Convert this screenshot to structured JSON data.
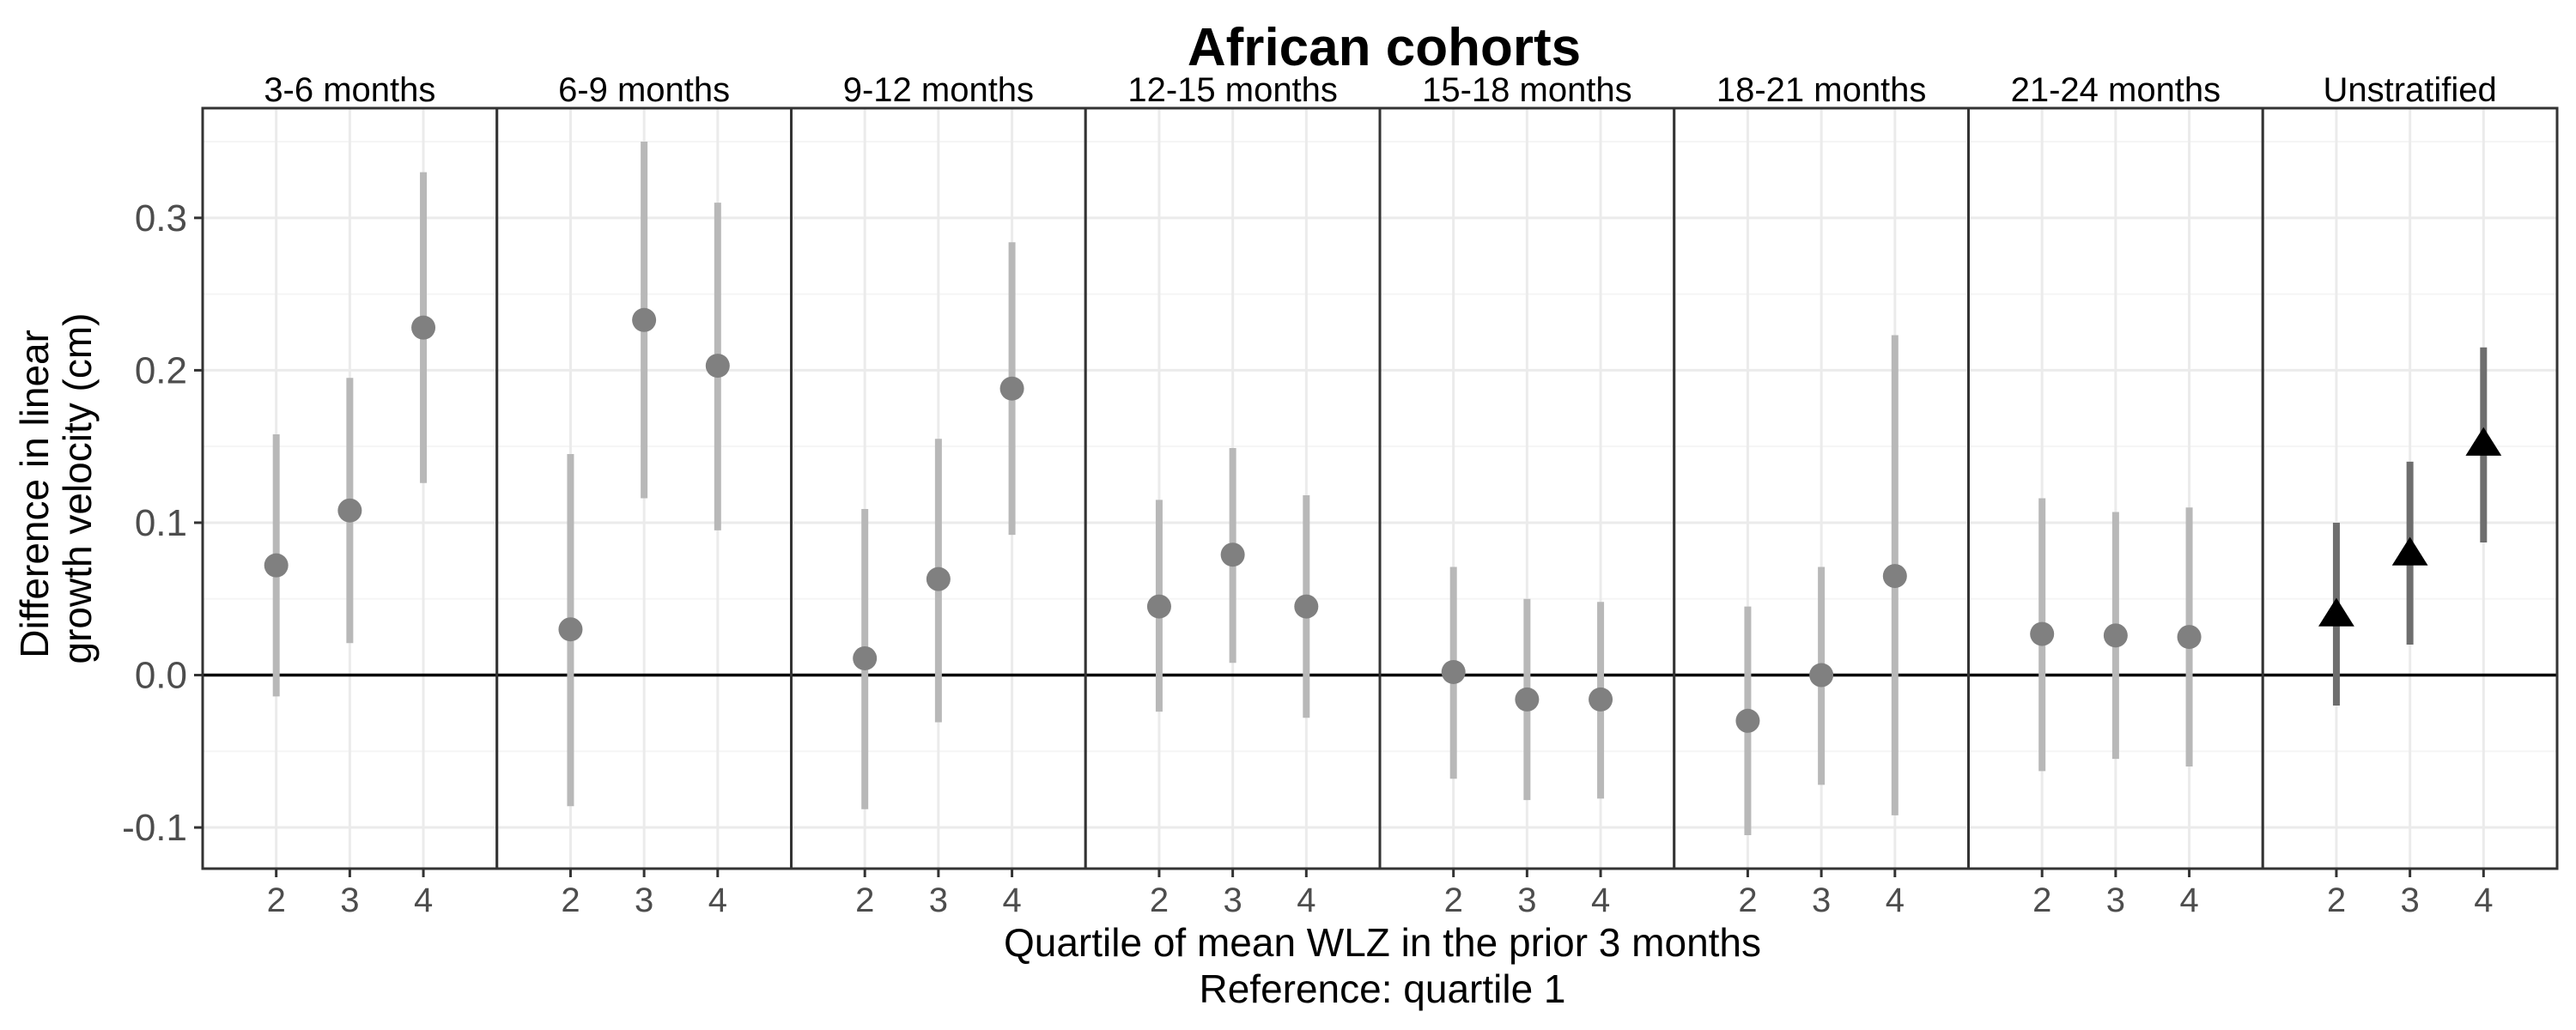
{
  "chart_data": {
    "type": "scatter",
    "title": "African cohorts",
    "xlabel": "Quartile of mean WLZ in the prior 3 months",
    "xlabel_sub": "Reference: quartile 1",
    "ylabel_lines": [
      "Difference in linear",
      "growth velocity (cm)"
    ],
    "categories": [
      "2",
      "3",
      "4"
    ],
    "ylim": [
      -0.127,
      0.372
    ],
    "yticks": [
      -0.1,
      0.0,
      0.1,
      0.2,
      0.3
    ],
    "ytick_labels": [
      "-0.1",
      "0.0",
      "0.1",
      "0.2",
      "0.3"
    ],
    "grid": true,
    "reference_line": 0,
    "legend": "none",
    "colors": {
      "stratified_point": "#808080",
      "stratified_ci": "#b8b8b8",
      "unstratified_point": "#000000",
      "unstratified_ci": "#6e6e6e",
      "grid_major": "#ebebeb",
      "grid_minor": "#f5f5f5",
      "panel_border": "#333333"
    },
    "panels": [
      {
        "label": "3-6 months",
        "marker": "circle",
        "points": [
          {
            "x": "2",
            "y": 0.072,
            "lo": -0.014,
            "hi": 0.158
          },
          {
            "x": "3",
            "y": 0.108,
            "lo": 0.021,
            "hi": 0.195
          },
          {
            "x": "4",
            "y": 0.228,
            "lo": 0.126,
            "hi": 0.33
          }
        ]
      },
      {
        "label": "6-9 months",
        "marker": "circle",
        "points": [
          {
            "x": "2",
            "y": 0.03,
            "lo": -0.086,
            "hi": 0.145
          },
          {
            "x": "3",
            "y": 0.233,
            "lo": 0.116,
            "hi": 0.35
          },
          {
            "x": "4",
            "y": 0.203,
            "lo": 0.095,
            "hi": 0.31
          }
        ]
      },
      {
        "label": "9-12 months",
        "marker": "circle",
        "points": [
          {
            "x": "2",
            "y": 0.011,
            "lo": -0.088,
            "hi": 0.109
          },
          {
            "x": "3",
            "y": 0.063,
            "lo": -0.031,
            "hi": 0.155
          },
          {
            "x": "4",
            "y": 0.188,
            "lo": 0.092,
            "hi": 0.284
          }
        ]
      },
      {
        "label": "12-15 months",
        "marker": "circle",
        "points": [
          {
            "x": "2",
            "y": 0.045,
            "lo": -0.024,
            "hi": 0.115
          },
          {
            "x": "3",
            "y": 0.079,
            "lo": 0.008,
            "hi": 0.149
          },
          {
            "x": "4",
            "y": 0.045,
            "lo": -0.028,
            "hi": 0.118
          }
        ]
      },
      {
        "label": "15-18 months",
        "marker": "circle",
        "points": [
          {
            "x": "2",
            "y": 0.002,
            "lo": -0.068,
            "hi": 0.071
          },
          {
            "x": "3",
            "y": -0.016,
            "lo": -0.082,
            "hi": 0.05
          },
          {
            "x": "4",
            "y": -0.016,
            "lo": -0.081,
            "hi": 0.048
          }
        ]
      },
      {
        "label": "18-21 months",
        "marker": "circle",
        "points": [
          {
            "x": "2",
            "y": -0.03,
            "lo": -0.105,
            "hi": 0.045
          },
          {
            "x": "3",
            "y": 0.0,
            "lo": -0.072,
            "hi": 0.071
          },
          {
            "x": "4",
            "y": 0.065,
            "lo": -0.092,
            "hi": 0.223
          }
        ]
      },
      {
        "label": "21-24 months",
        "marker": "circle",
        "points": [
          {
            "x": "2",
            "y": 0.027,
            "lo": -0.063,
            "hi": 0.116
          },
          {
            "x": "3",
            "y": 0.026,
            "lo": -0.055,
            "hi": 0.107
          },
          {
            "x": "4",
            "y": 0.025,
            "lo": -0.06,
            "hi": 0.11
          }
        ]
      },
      {
        "label": "Unstratified",
        "marker": "triangle",
        "points": [
          {
            "x": "2",
            "y": 0.04,
            "lo": -0.02,
            "hi": 0.1
          },
          {
            "x": "3",
            "y": 0.08,
            "lo": 0.02,
            "hi": 0.14
          },
          {
            "x": "4",
            "y": 0.152,
            "lo": 0.087,
            "hi": 0.215
          }
        ]
      }
    ]
  }
}
